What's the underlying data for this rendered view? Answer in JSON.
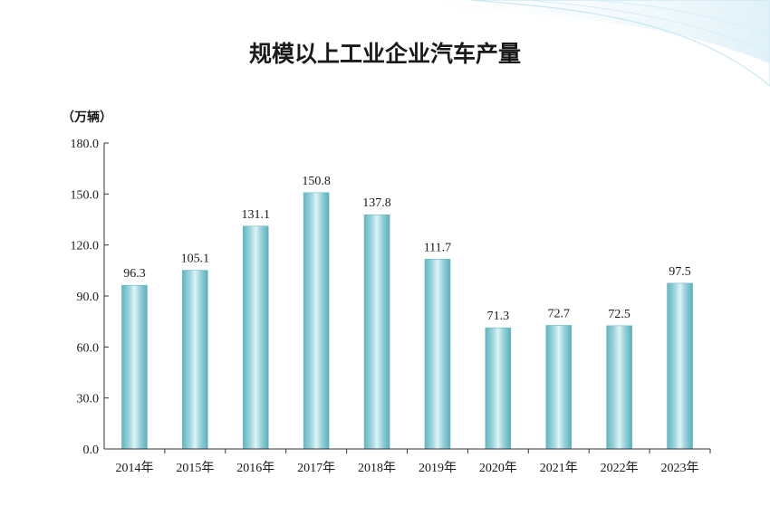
{
  "chart_data": {
    "type": "bar",
    "title": "规模以上工业企业汽车产量",
    "ylabel": "（万辆）",
    "xlabel": "",
    "categories": [
      "2014年",
      "2015年",
      "2016年",
      "2017年",
      "2018年",
      "2019年",
      "2020年",
      "2021年",
      "2022年",
      "2023年"
    ],
    "values": [
      96.3,
      105.1,
      131.1,
      150.8,
      137.8,
      111.7,
      71.3,
      72.7,
      72.5,
      97.5
    ],
    "data_labels": [
      "96.3",
      "105.1",
      "131.1",
      "150.8",
      "137.8",
      "111.7",
      "71.3",
      "72.7",
      "72.5",
      "97.5"
    ],
    "ylim": [
      0,
      180
    ],
    "yticks": [
      "0.0",
      "30.0",
      "60.0",
      "90.0",
      "120.0",
      "150.0",
      "180.0"
    ],
    "grid": false,
    "colors": {
      "bar_edge": "#5fb3bf",
      "bar_light": "#d9f1f4",
      "bar_mid": "#8fd0d9",
      "axis": "#333333",
      "wave": "#cfe9f5"
    }
  }
}
